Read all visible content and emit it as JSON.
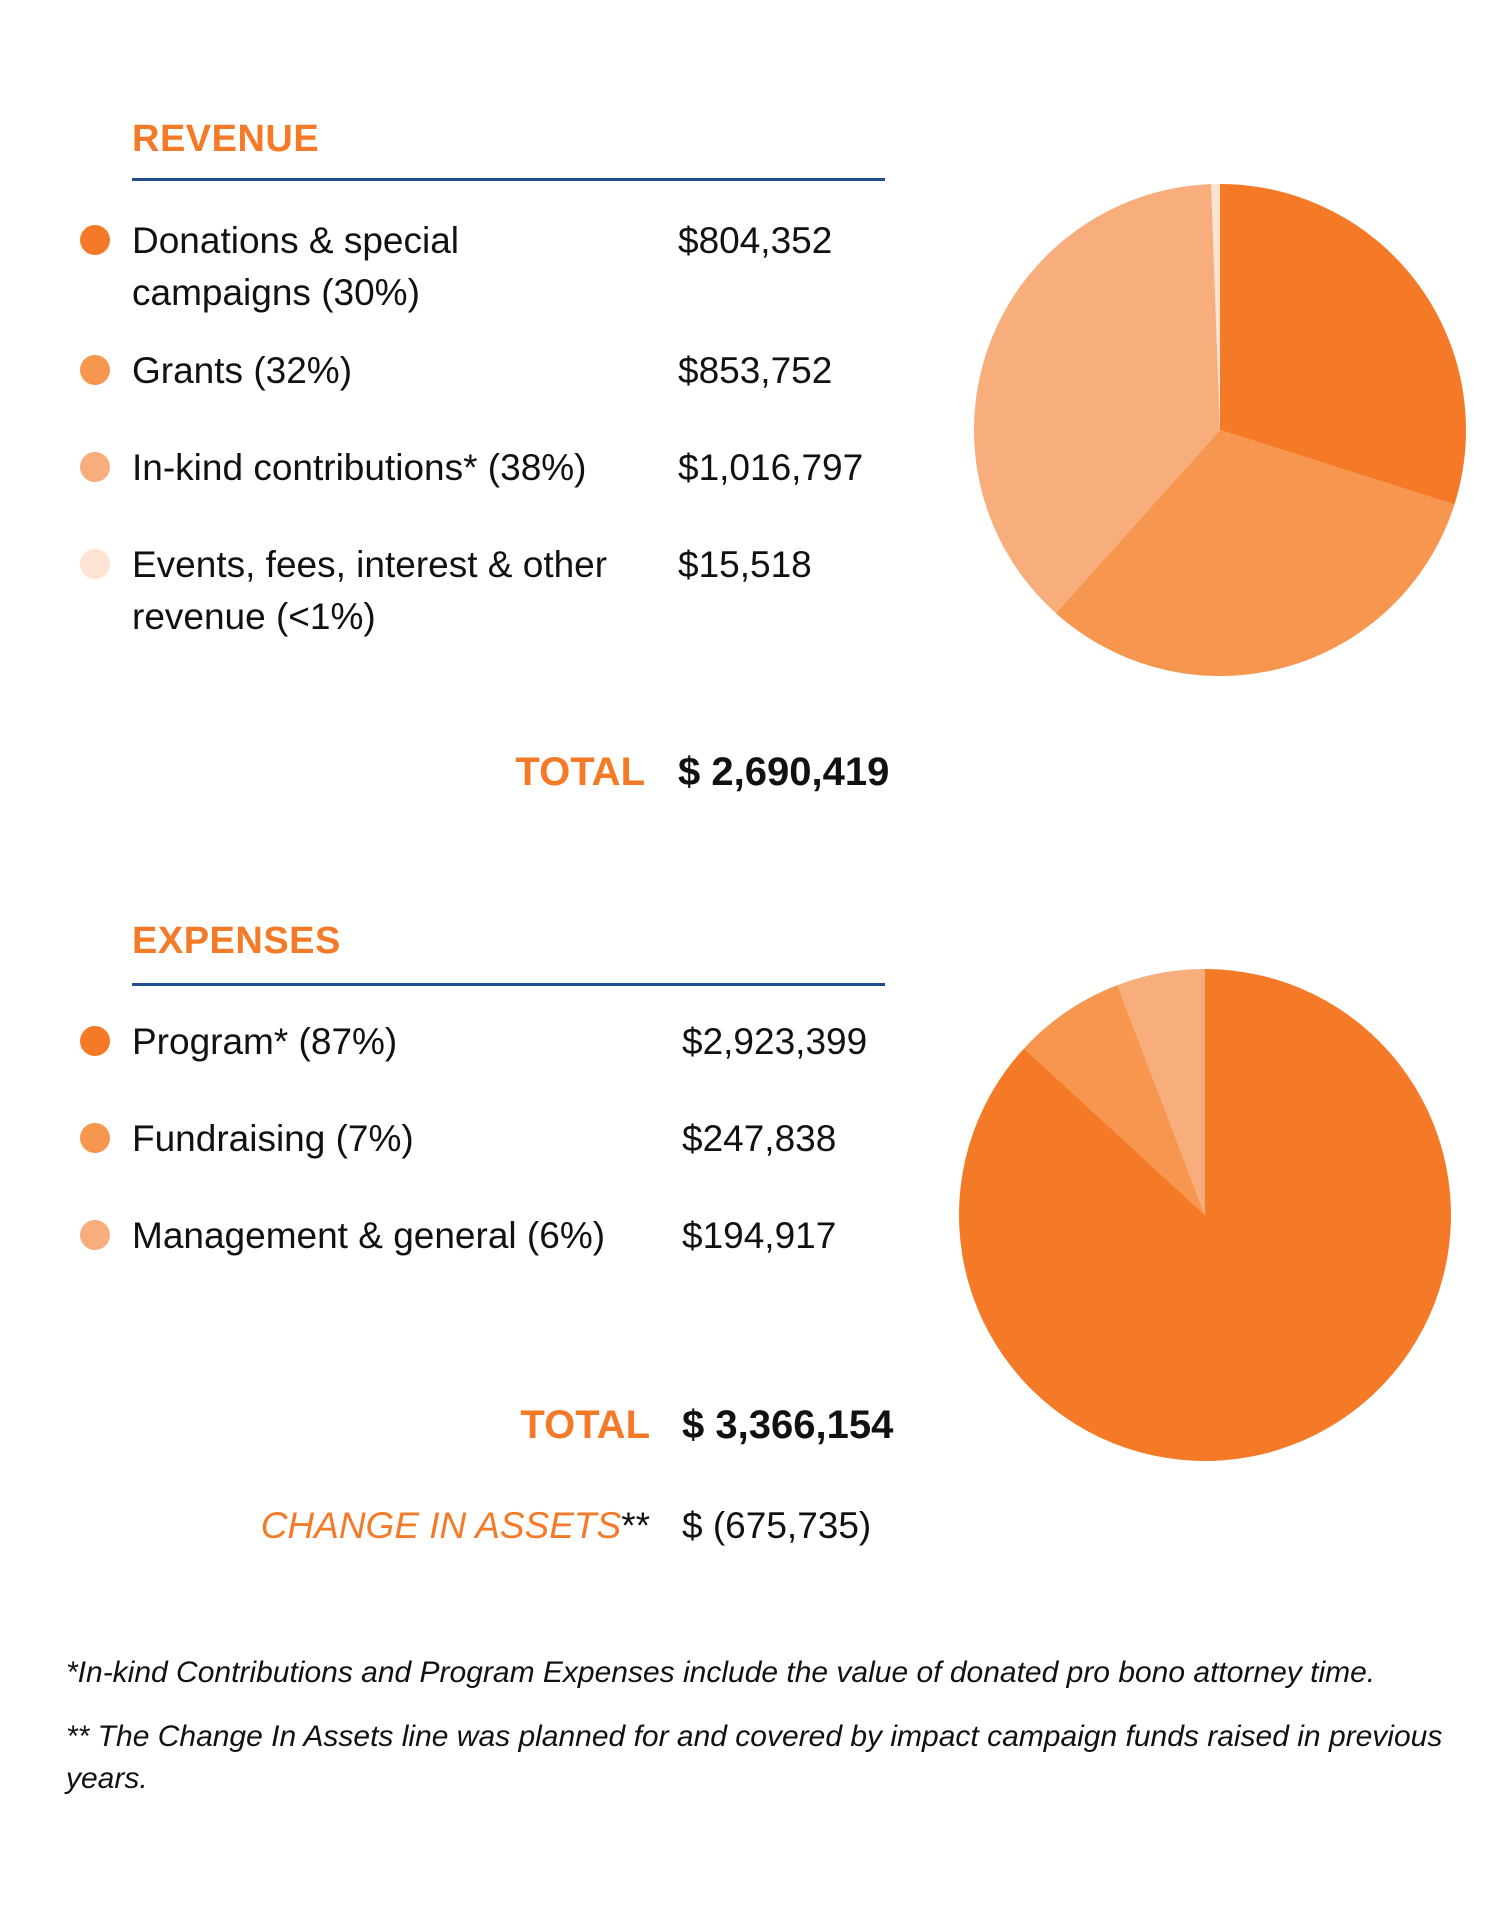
{
  "colors": {
    "orange_1": "#f47a28",
    "orange_2": "#f6964f",
    "orange_3": "#f8ae7c",
    "orange_4": "#fde3d3",
    "rule_blue": "#1f4e8c"
  },
  "revenue": {
    "heading": "REVENUE",
    "items": [
      {
        "label": "Donations & special campaigns (30%)",
        "amount": "$804,352"
      },
      {
        "label": "Grants (32%)",
        "amount": "$853,752"
      },
      {
        "label": "In-kind contributions* (38%)",
        "amount": "$1,016,797"
      },
      {
        "label": "Events, fees, interest & other revenue (<1%)",
        "amount": "$15,518"
      }
    ],
    "total_label": "TOTAL",
    "total_amount": "$ 2,690,419"
  },
  "expenses": {
    "heading": "EXPENSES",
    "items": [
      {
        "label": "Program* (87%)",
        "amount": "$2,923,399"
      },
      {
        "label": "Fundraising (7%)",
        "amount": "$247,838"
      },
      {
        "label": "Management & general (6%)",
        "amount": "$194,917"
      }
    ],
    "total_label": "TOTAL",
    "total_amount": "$ 3,366,154",
    "assets_label": "CHANGE IN ASSETS",
    "assets_stars": "**",
    "assets_amount": "$ (675,735)"
  },
  "footnotes": {
    "note1": "*In-kind Contributions and Program Expenses include the value of donated pro bono attorney time.",
    "note2": "** The Change In Assets line was planned for and covered by impact campaign funds raised in previous years."
  },
  "chart_data": [
    {
      "type": "pie",
      "title": "",
      "categories": [
        "Donations & special campaigns",
        "Grants",
        "In-kind contributions",
        "Events, fees, interest & other revenue"
      ],
      "values": [
        804352,
        853752,
        1016797,
        15518
      ],
      "colors": [
        "#f47a28",
        "#f6964f",
        "#f8ae7c",
        "#fde3d3"
      ]
    },
    {
      "type": "pie",
      "title": "",
      "categories": [
        "Program",
        "Fundraising",
        "Management & general"
      ],
      "values": [
        2923399,
        247838,
        194917
      ],
      "colors": [
        "#f47a28",
        "#f6964f",
        "#f8ae7c"
      ]
    }
  ]
}
